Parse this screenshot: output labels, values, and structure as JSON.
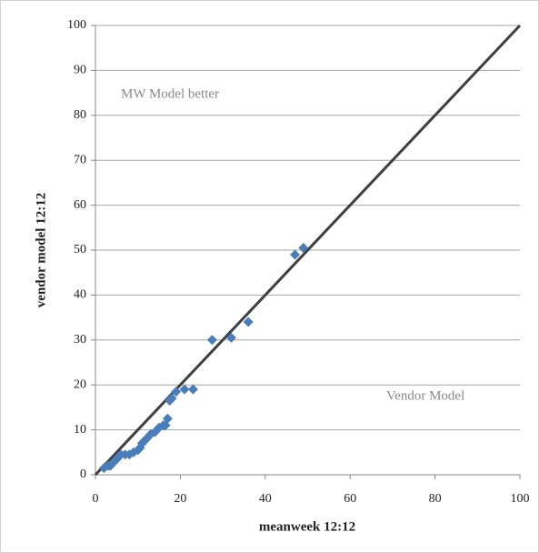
{
  "chart_data": {
    "type": "scatter",
    "x_label": "meanweek 12:12",
    "y_label": "vendor model 12:12",
    "annotations": [
      "MW Model better",
      "Vendor Model"
    ],
    "reference_line": true,
    "grid": true,
    "series": [
      {
        "color": "#4a7ebb",
        "x": [
          2,
          3,
          3.5,
          4,
          4.5,
          5,
          5.5,
          6,
          7,
          8,
          9,
          10,
          10.5,
          11,
          11.5,
          12,
          13,
          14,
          15,
          16,
          16.5,
          17,
          17.5,
          18,
          19,
          21,
          23,
          27.5,
          32,
          36,
          47,
          49
        ],
        "values": [
          1.5,
          2,
          2,
          2.5,
          3,
          3.5,
          4,
          4.5,
          4.5,
          4.5,
          5,
          5.5,
          6,
          7,
          7.5,
          8,
          9,
          9.5,
          10.5,
          11,
          11,
          12.5,
          16.5,
          17,
          18.5,
          19,
          19,
          30,
          30.5,
          34,
          49,
          50.5
        ]
      }
    ],
    "xlim": [
      0,
      100
    ],
    "xticks": [
      0,
      20,
      40,
      60,
      80,
      100
    ],
    "ylim": [
      0,
      100
    ],
    "yticks": [
      0,
      10,
      20,
      30,
      40,
      50,
      60,
      70,
      80,
      90,
      100
    ]
  }
}
